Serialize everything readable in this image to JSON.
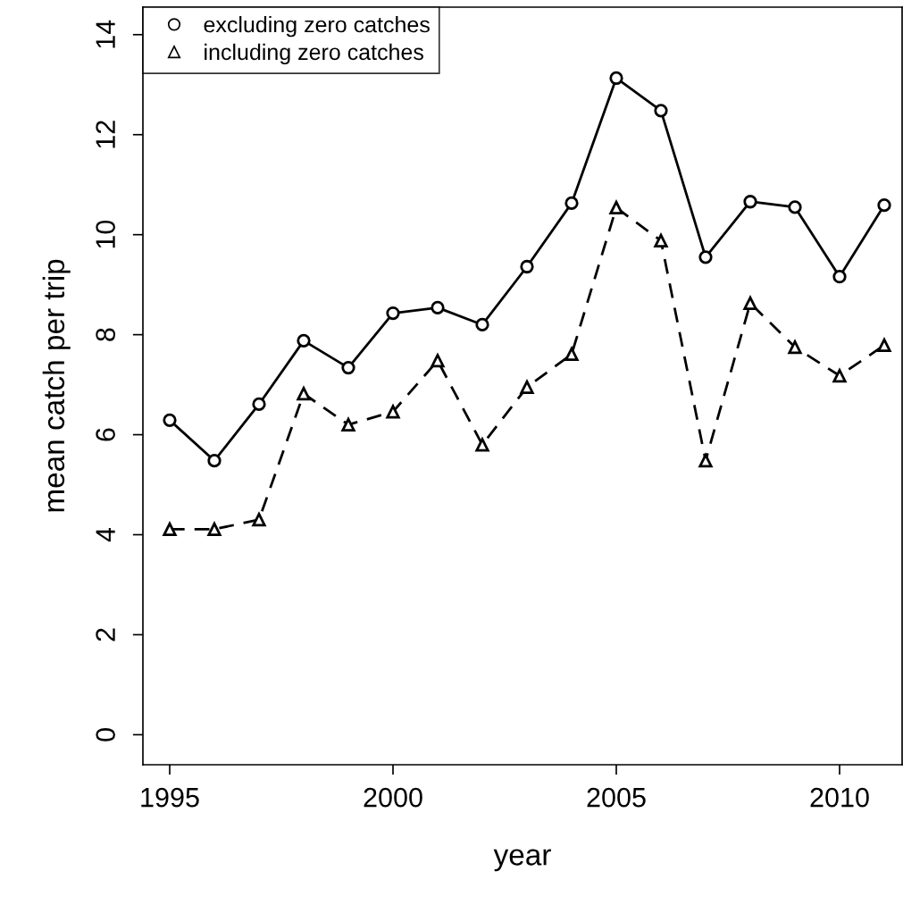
{
  "chart_data": {
    "type": "line",
    "xlabel": "year",
    "ylabel": "mean catch per trip",
    "x": [
      1995,
      1996,
      1997,
      1998,
      1999,
      2000,
      2001,
      2002,
      2003,
      2004,
      2005,
      2006,
      2007,
      2008,
      2009,
      2010,
      2011
    ],
    "series": [
      {
        "name": "excluding zero catches",
        "color": "#000000",
        "marker": "circle",
        "line_style": "solid",
        "values": [
          6.29,
          5.48,
          6.61,
          7.88,
          7.34,
          8.43,
          8.54,
          8.2,
          9.36,
          10.63,
          13.13,
          12.48,
          9.55,
          10.66,
          10.55,
          9.16,
          10.59
        ]
      },
      {
        "name": "including zero catches",
        "color": "#000000",
        "marker": "triangle",
        "line_style": "dashed",
        "values": [
          4.11,
          4.11,
          4.3,
          6.82,
          6.2,
          6.46,
          7.48,
          5.8,
          6.95,
          7.61,
          10.54,
          9.88,
          5.48,
          8.63,
          7.75,
          7.18,
          7.79
        ]
      }
    ],
    "xlim": [
      1994.4,
      2011.4
    ],
    "ylim": [
      -0.6,
      14.55
    ],
    "xticks": [
      1995,
      2000,
      2005,
      2010
    ],
    "yticks": [
      0,
      2,
      4,
      6,
      8,
      10,
      12,
      14
    ],
    "grid": false,
    "legend": "top left"
  }
}
